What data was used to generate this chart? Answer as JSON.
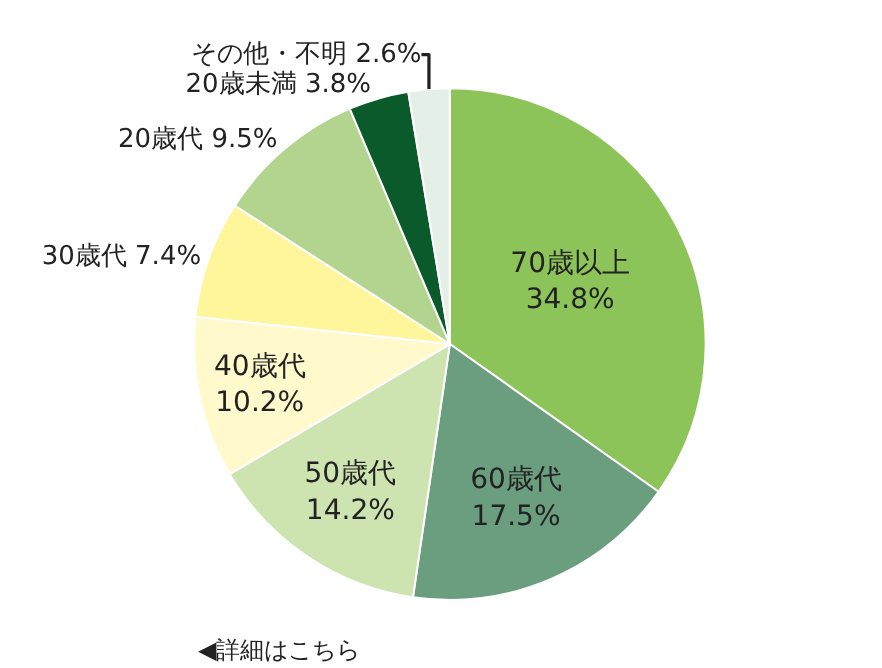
{
  "chart_data": {
    "type": "pie",
    "categories": [
      "70歳以上",
      "60歳代",
      "50歳代",
      "40歳代",
      "30歳代",
      "20歳代",
      "20歳未満",
      "その他・不明"
    ],
    "values": [
      34.8,
      17.5,
      14.2,
      10.2,
      7.4,
      9.5,
      3.8,
      2.6
    ],
    "value_labels": [
      "34.8%",
      "17.5%",
      "14.2%",
      "10.2%",
      "7.4%",
      "9.5%",
      "3.8%",
      "2.6%"
    ],
    "colors": [
      "#8cc45a",
      "#6a9e7e",
      "#cde3b0",
      "#fff9cc",
      "#fff59a",
      "#b3d48e",
      "#0b5a2c",
      "#e4efe8"
    ],
    "annotations": [
      "◀詳細はこちら"
    ]
  }
}
